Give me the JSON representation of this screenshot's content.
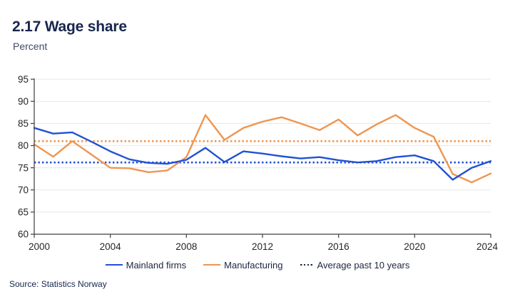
{
  "header": {
    "title": "2.17 Wage share",
    "subtitle": "Percent"
  },
  "source": "Source: Statistics Norway",
  "legend": [
    {
      "label": "Mainland firms",
      "style": "solid",
      "color": "#2151d5"
    },
    {
      "label": "Manufacturing",
      "style": "solid",
      "color": "#ee9651"
    },
    {
      "label": "Average past 10 years",
      "style": "dotted",
      "color": "#1b2540"
    }
  ],
  "colors": {
    "blue": "#2151d5",
    "orange": "#ee9651",
    "navy_text": "#17264e",
    "axis_line": "#3d3d3d",
    "tick_label": "#262626",
    "gridline": "#e8e8e8"
  },
  "chart_data": {
    "type": "line",
    "title": "2.17 Wage share",
    "ylabel": "Percent",
    "x": [
      2000,
      2001,
      2002,
      2003,
      2004,
      2005,
      2006,
      2007,
      2008,
      2009,
      2010,
      2011,
      2012,
      2013,
      2014,
      2015,
      2016,
      2017,
      2018,
      2019,
      2020,
      2021,
      2022,
      2023,
      2024
    ],
    "series": [
      {
        "name": "Mainland firms",
        "color": "#2151d5",
        "style": "solid",
        "values": [
          84.0,
          82.7,
          83.0,
          80.9,
          78.7,
          76.9,
          76.1,
          75.9,
          76.8,
          79.5,
          76.3,
          78.7,
          78.2,
          77.6,
          77.1,
          77.4,
          76.7,
          76.2,
          76.5,
          77.4,
          77.8,
          76.5,
          72.3,
          75.0,
          76.5
        ]
      },
      {
        "name": "Manufacturing",
        "color": "#ee9651",
        "style": "solid",
        "values": [
          80.3,
          77.5,
          81.0,
          78.0,
          75.0,
          74.9,
          74.0,
          74.4,
          77.4,
          86.9,
          81.3,
          84.0,
          85.4,
          86.4,
          85.0,
          83.5,
          85.9,
          82.3,
          84.8,
          86.9,
          84.0,
          82.0,
          73.6,
          71.7,
          73.7
        ]
      },
      {
        "name": "Average past 10 years (Manufacturing)",
        "color": "#ee9651",
        "style": "dotted",
        "constant": 81.0
      },
      {
        "name": "Average past 10 years (Mainland firms)",
        "color": "#2151d5",
        "style": "dotted",
        "constant": 76.2
      }
    ],
    "ylim": [
      60,
      95
    ],
    "y_ticks": [
      60,
      65,
      70,
      75,
      80,
      85,
      90,
      95
    ],
    "x_ticks": [
      2000,
      2004,
      2008,
      2012,
      2016,
      2020,
      2024
    ],
    "grid": "horizontal",
    "legend_position": "bottom"
  }
}
